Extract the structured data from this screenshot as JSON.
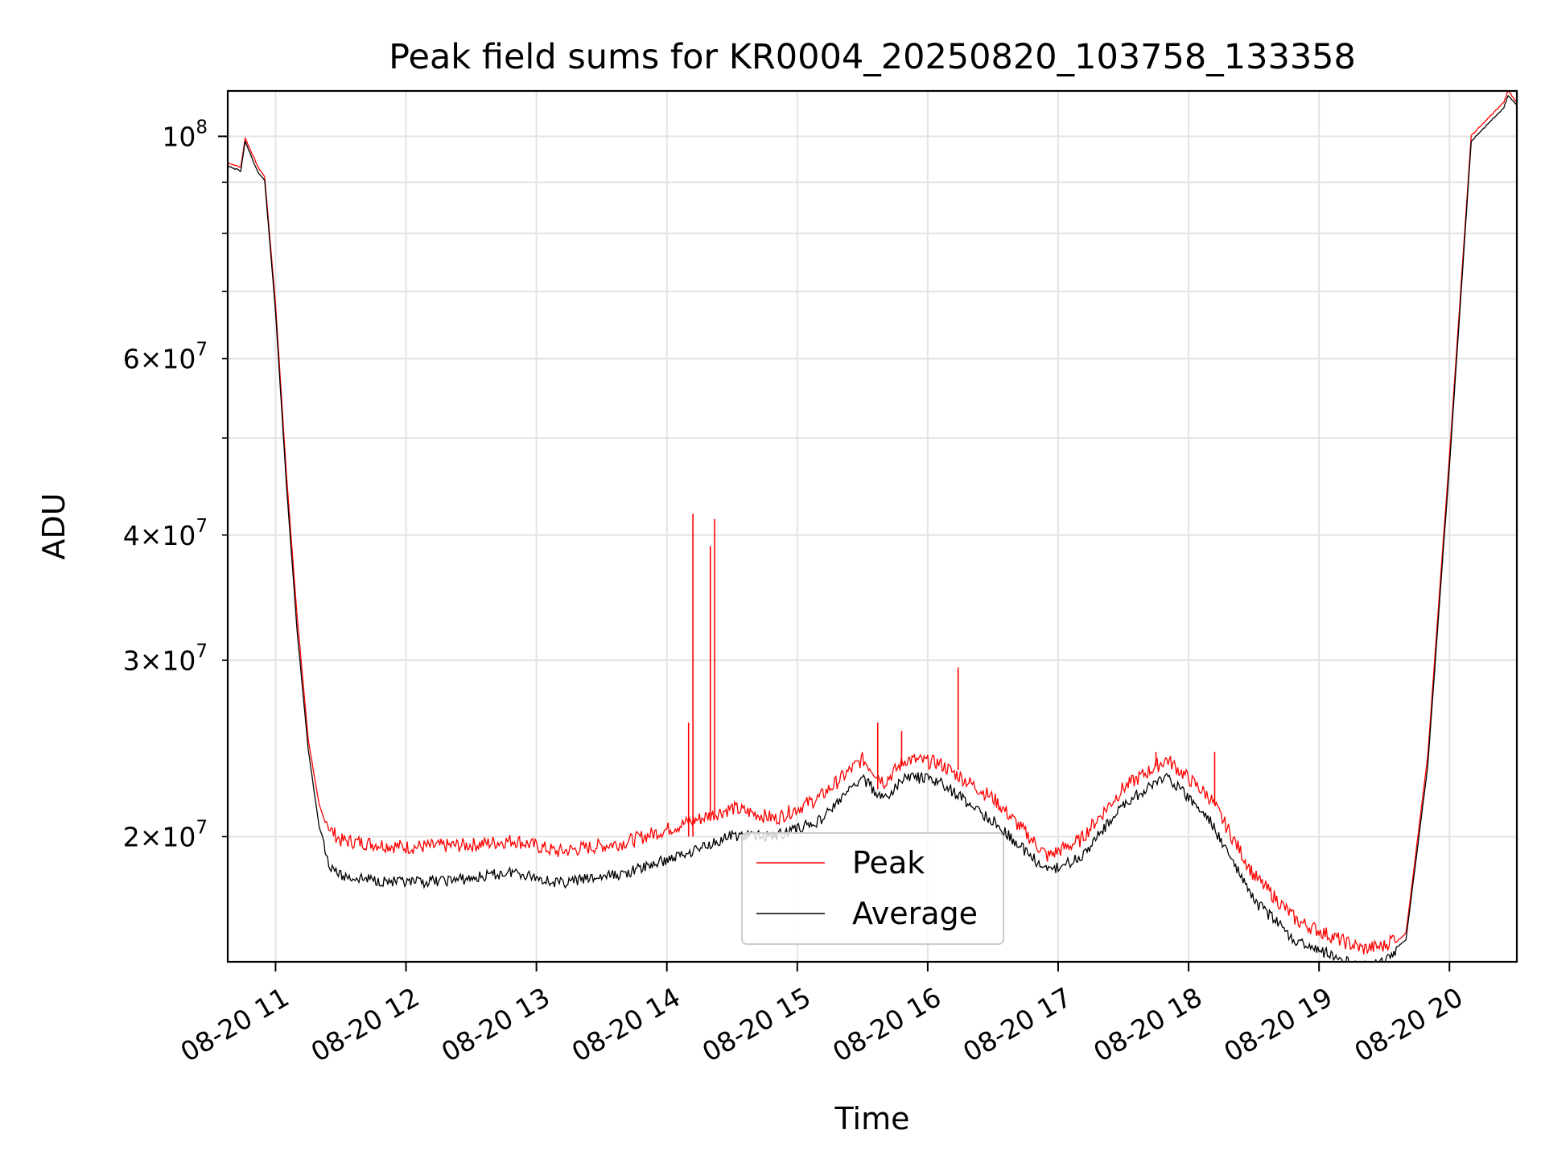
{
  "chart_data": {
    "type": "line",
    "title": "Peak field sums for KR0004_20250820_103758_133358",
    "xlabel": "Time",
    "ylabel": "ADU",
    "x_axis": {
      "kind": "datetime",
      "range": [
        "2025-08-20 10:38",
        "2025-08-20 20:31"
      ],
      "ticks": [
        {
          "value": "2025-08-20 11:00",
          "label": "08-20 11"
        },
        {
          "value": "2025-08-20 12:00",
          "label": "08-20 12"
        },
        {
          "value": "2025-08-20 13:00",
          "label": "08-20 13"
        },
        {
          "value": "2025-08-20 14:00",
          "label": "08-20 14"
        },
        {
          "value": "2025-08-20 15:00",
          "label": "08-20 15"
        },
        {
          "value": "2025-08-20 16:00",
          "label": "08-20 16"
        },
        {
          "value": "2025-08-20 17:00",
          "label": "08-20 17"
        },
        {
          "value": "2025-08-20 18:00",
          "label": "08-20 18"
        },
        {
          "value": "2025-08-20 19:00",
          "label": "08-20 19"
        },
        {
          "value": "2025-08-20 20:00",
          "label": "08-20 20"
        }
      ]
    },
    "y_axis": {
      "scale": "log",
      "range": [
        15000000,
        111000000
      ],
      "major_ticks": [
        {
          "value": 100000000,
          "mant": "",
          "exp": "8"
        }
      ],
      "minor_labeled_ticks": [
        {
          "value": 20000000,
          "mant": "2",
          "exp": "7"
        },
        {
          "value": 30000000,
          "mant": "3",
          "exp": "7"
        },
        {
          "value": 40000000,
          "mant": "4",
          "exp": "7"
        },
        {
          "value": 60000000,
          "mant": "6",
          "exp": "7"
        }
      ],
      "minor_unlabeled_ticks": [
        50000000,
        70000000,
        80000000,
        90000000
      ]
    },
    "grid": true,
    "legend": {
      "placement": "lower center"
    },
    "series": [
      {
        "name": "Peak",
        "color": "#ff0000",
        "points": [
          [
            "2025-08-20 10:38",
            94000000
          ],
          [
            "2025-08-20 10:44",
            93000000
          ],
          [
            "2025-08-20 10:46",
            99500000
          ],
          [
            "2025-08-20 10:52",
            93000000
          ],
          [
            "2025-08-20 10:55",
            91000000
          ],
          [
            "2025-08-20 11:00",
            68000000
          ],
          [
            "2025-08-20 11:05",
            46000000
          ],
          [
            "2025-08-20 11:10",
            33000000
          ],
          [
            "2025-08-20 11:15",
            25000000
          ],
          [
            "2025-08-20 11:20",
            21500000
          ],
          [
            "2025-08-20 11:25",
            20000000
          ],
          [
            "2025-08-20 11:30",
            19500000
          ],
          [
            "2025-08-20 12:00",
            19200000
          ],
          [
            "2025-08-20 12:30",
            19300000
          ],
          [
            "2025-08-20 12:50",
            19500000
          ],
          [
            "2025-08-20 13:10",
            19000000
          ],
          [
            "2025-08-20 13:40",
            19400000
          ],
          [
            "2025-08-20 14:00",
            20000000
          ],
          [
            "2025-08-20 14:30",
            21000000
          ],
          [
            "2025-08-20 14:50",
            20500000
          ],
          [
            "2025-08-20 15:10",
            21500000
          ],
          [
            "2025-08-20 15:30",
            23500000
          ],
          [
            "2025-08-20 15:40",
            22300000
          ],
          [
            "2025-08-20 15:50",
            23500000
          ],
          [
            "2025-08-20 16:05",
            23300000
          ],
          [
            "2025-08-20 16:30",
            21500000
          ],
          [
            "2025-08-20 16:55",
            18800000
          ],
          [
            "2025-08-20 17:10",
            19500000
          ],
          [
            "2025-08-20 17:30",
            22000000
          ],
          [
            "2025-08-20 17:50",
            23500000
          ],
          [
            "2025-08-20 18:10",
            21500000
          ],
          [
            "2025-08-20 18:30",
            18000000
          ],
          [
            "2025-08-20 18:50",
            16200000
          ],
          [
            "2025-08-20 19:10",
            15500000
          ],
          [
            "2025-08-20 19:20",
            15200000
          ],
          [
            "2025-08-20 19:30",
            15300000
          ],
          [
            "2025-08-20 19:40",
            16000000
          ],
          [
            "2025-08-20 19:50",
            24000000
          ],
          [
            "2025-08-20 20:00",
            48000000
          ],
          [
            "2025-08-20 20:10",
            100000000
          ],
          [
            "2025-08-20 20:25",
            108000000
          ],
          [
            "2025-08-20 20:27",
            111000000
          ],
          [
            "2025-08-20 20:31",
            108000000
          ]
        ],
        "spikes": [
          [
            "2025-08-20 14:12",
            42000000
          ],
          [
            "2025-08-20 14:20",
            39000000
          ],
          [
            "2025-08-20 14:22",
            41500000
          ],
          [
            "2025-08-20 14:10",
            26000000
          ],
          [
            "2025-08-20 15:37",
            26000000
          ],
          [
            "2025-08-20 15:48",
            25500000
          ],
          [
            "2025-08-20 16:14",
            29500000
          ],
          [
            "2025-08-20 17:45",
            24300000
          ],
          [
            "2025-08-20 18:12",
            24300000
          ]
        ]
      },
      {
        "name": "Average",
        "color": "#000000",
        "points": [
          [
            "2025-08-20 10:38",
            93500000
          ],
          [
            "2025-08-20 10:44",
            92500000
          ],
          [
            "2025-08-20 10:46",
            99000000
          ],
          [
            "2025-08-20 10:52",
            92000000
          ],
          [
            "2025-08-20 10:55",
            90500000
          ],
          [
            "2025-08-20 11:00",
            67000000
          ],
          [
            "2025-08-20 11:05",
            45000000
          ],
          [
            "2025-08-20 11:10",
            32000000
          ],
          [
            "2025-08-20 11:15",
            24500000
          ],
          [
            "2025-08-20 11:20",
            20500000
          ],
          [
            "2025-08-20 11:25",
            19000000
          ],
          [
            "2025-08-20 11:30",
            18500000
          ],
          [
            "2025-08-20 12:00",
            18200000
          ],
          [
            "2025-08-20 12:30",
            18400000
          ],
          [
            "2025-08-20 12:50",
            18700000
          ],
          [
            "2025-08-20 13:10",
            18200000
          ],
          [
            "2025-08-20 13:40",
            18600000
          ],
          [
            "2025-08-20 14:00",
            19200000
          ],
          [
            "2025-08-20 14:30",
            20300000
          ],
          [
            "2025-08-20 14:50",
            20300000
          ],
          [
            "2025-08-20 15:10",
            21000000
          ],
          [
            "2025-08-20 15:30",
            23200000
          ],
          [
            "2025-08-20 15:40",
            22000000
          ],
          [
            "2025-08-20 15:50",
            23300000
          ],
          [
            "2025-08-20 16:05",
            23000000
          ],
          [
            "2025-08-20 16:30",
            21000000
          ],
          [
            "2025-08-20 16:55",
            18700000
          ],
          [
            "2025-08-20 17:10",
            19300000
          ],
          [
            "2025-08-20 17:30",
            21800000
          ],
          [
            "2025-08-20 17:50",
            23300000
          ],
          [
            "2025-08-20 18:10",
            21000000
          ],
          [
            "2025-08-20 18:30",
            17500000
          ],
          [
            "2025-08-20 18:50",
            15900000
          ],
          [
            "2025-08-20 19:10",
            15300000
          ],
          [
            "2025-08-20 19:20",
            15050000
          ],
          [
            "2025-08-20 19:30",
            15200000
          ],
          [
            "2025-08-20 19:40",
            15800000
          ],
          [
            "2025-08-20 19:50",
            23500000
          ],
          [
            "2025-08-20 20:00",
            47000000
          ],
          [
            "2025-08-20 20:10",
            99000000
          ],
          [
            "2025-08-20 20:25",
            107000000
          ],
          [
            "2025-08-20 20:27",
            110000000
          ],
          [
            "2025-08-20 20:31",
            107500000
          ]
        ]
      }
    ]
  }
}
